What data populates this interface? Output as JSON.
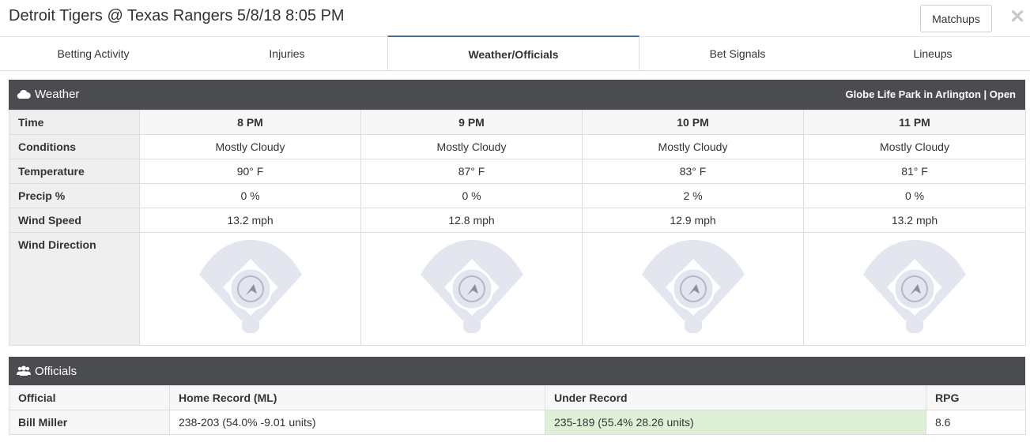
{
  "header": {
    "title": "Detroit Tigers @ Texas Rangers 5/8/18 8:05 PM",
    "matchups_label": "Matchups",
    "close_label": "✕"
  },
  "tabs": [
    {
      "label": "Betting Activity",
      "active": false
    },
    {
      "label": "Injuries",
      "active": false
    },
    {
      "label": "Weather/Officials",
      "active": true
    },
    {
      "label": "Bet Signals",
      "active": false
    },
    {
      "label": "Lineups",
      "active": false
    }
  ],
  "weather": {
    "title": "Weather",
    "icon": "cloud-icon",
    "venue": "Globe Life Park in Arlington | Open",
    "row_labels": {
      "time": "Time",
      "conditions": "Conditions",
      "temperature": "Temperature",
      "precip": "Precip %",
      "wind_speed": "Wind Speed",
      "wind_direction": "Wind Direction"
    },
    "hours": [
      {
        "time": "8 PM",
        "conditions": "Mostly Cloudy",
        "temperature": "90° F",
        "precip": "0 %",
        "wind_speed": "13.2 mph",
        "wind_icon": "wind-direction-arrow-icon"
      },
      {
        "time": "9 PM",
        "conditions": "Mostly Cloudy",
        "temperature": "87° F",
        "precip": "0 %",
        "wind_speed": "12.8 mph",
        "wind_icon": "wind-direction-arrow-icon"
      },
      {
        "time": "10 PM",
        "conditions": "Mostly Cloudy",
        "temperature": "83° F",
        "precip": "2 %",
        "wind_speed": "12.9 mph",
        "wind_icon": "wind-direction-arrow-icon"
      },
      {
        "time": "11 PM",
        "conditions": "Mostly Cloudy",
        "temperature": "81° F",
        "precip": "0 %",
        "wind_speed": "13.2 mph",
        "wind_icon": "wind-direction-arrow-icon"
      }
    ]
  },
  "officials": {
    "title": "Officials",
    "icon": "users-icon",
    "columns": [
      "Official",
      "Home Record (ML)",
      "Under Record",
      "RPG"
    ],
    "rows": [
      {
        "official": "Bill Miller",
        "home_record": "238-203 (54.0% -9.01 units)",
        "under_record": "235-189 (55.4% 28.26 units)",
        "rpg": "8.6"
      }
    ]
  },
  "colors": {
    "panel_header": "#4a4c50",
    "active_tab_accent": "#4a6e8a",
    "highlight_green": "#dff0d8",
    "field_fill": "#e3e6ef"
  }
}
